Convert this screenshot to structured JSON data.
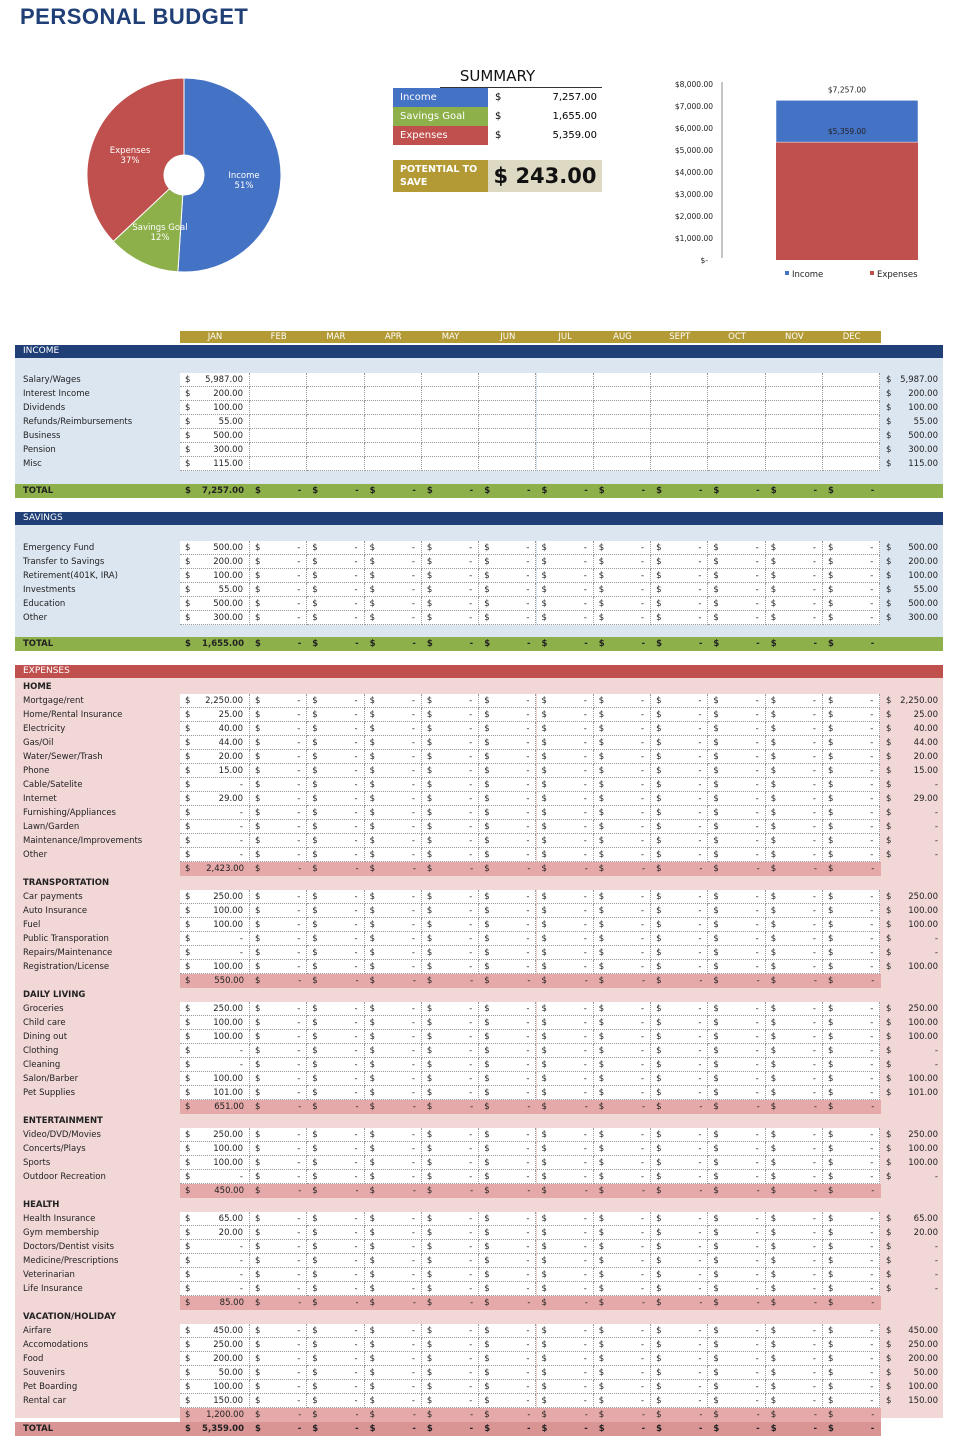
{
  "title": "PERSONAL BUDGET",
  "colors": {
    "navy": "#1f3f76",
    "blue": "#4472c4",
    "green": "#8db04a",
    "red": "#c0504d",
    "gold": "#b39a35",
    "beige": "#ddd9c3",
    "light_blue": "#dce6f1",
    "pink": "#f2d7d7",
    "pink_dark": "#d99594"
  },
  "summary": {
    "title": "SUMMARY",
    "rows": [
      {
        "label": "Income",
        "currency": "$",
        "value": "7,257.00",
        "color": "#4472c4"
      },
      {
        "label": "Savings Goal",
        "currency": "$",
        "value": "1,655.00",
        "color": "#8db04a"
      },
      {
        "label": "Expenses",
        "currency": "$",
        "value": "5,359.00",
        "color": "#c0504d"
      }
    ],
    "potential_label": "POTENTIAL TO SAVE",
    "potential_value": "$ 243.00"
  },
  "chart_data": [
    {
      "type": "pie",
      "slices": [
        {
          "label": "Income",
          "value": 51,
          "display": "51%",
          "color": "#4472c4"
        },
        {
          "label": "Savings Goal",
          "value": 12,
          "display": "12%",
          "color": "#8db04a"
        },
        {
          "label": "Expenses",
          "value": 37,
          "display": "37%",
          "color": "#c0504d"
        }
      ]
    },
    {
      "type": "bar",
      "stacked": true,
      "ylim": [
        0,
        8000
      ],
      "yticks": [
        "$-",
        "$1,000.00",
        "$2,000.00",
        "$3,000.00",
        "$4,000.00",
        "$5,000.00",
        "$6,000.00",
        "$7,000.00",
        "$8,000.00"
      ],
      "series": [
        {
          "name": "Expenses",
          "value": 5359,
          "label": "$5,359.00",
          "color": "#c0504d"
        },
        {
          "name": "Income",
          "value": 7257,
          "label": "$7,257.00",
          "color": "#4472c4"
        }
      ],
      "legend": [
        "Income",
        "Expenses"
      ],
      "legend_position": "bottom"
    }
  ],
  "months": [
    "JAN",
    "FEB",
    "MAR",
    "APR",
    "MAY",
    "JUN",
    "JUL",
    "AUG",
    "SEPT",
    "OCT",
    "NOV",
    "DEC"
  ],
  "income": {
    "title": "INCOME",
    "total_label": "TOTAL",
    "total": "7,257.00",
    "items": [
      {
        "label": "Salary/Wages",
        "jan": "5,987.00"
      },
      {
        "label": "Interest Income",
        "jan": "200.00"
      },
      {
        "label": "Dividends",
        "jan": "100.00"
      },
      {
        "label": "Refunds/Reimbursements",
        "jan": "55.00"
      },
      {
        "label": "Business",
        "jan": "500.00"
      },
      {
        "label": "Pension",
        "jan": "300.00"
      },
      {
        "label": "Misc",
        "jan": "115.00"
      }
    ]
  },
  "savings": {
    "title": "SAVINGS",
    "total_label": "TOTAL",
    "total": "1,655.00",
    "items": [
      {
        "label": "Emergency Fund",
        "jan": "500.00"
      },
      {
        "label": "Transfer to Savings",
        "jan": "200.00"
      },
      {
        "label": "Retirement(401K, IRA)",
        "jan": "100.00"
      },
      {
        "label": "Investments",
        "jan": "55.00"
      },
      {
        "label": "Education",
        "jan": "500.00"
      },
      {
        "label": "Other",
        "jan": "300.00"
      }
    ]
  },
  "expenses": {
    "title": "EXPENSES",
    "total_label": "TOTAL",
    "total": "5,359.00",
    "groups": [
      {
        "title": "HOME",
        "subtotal": "2,423.00",
        "items": [
          {
            "label": "Mortgage/rent",
            "jan": "2,250.00"
          },
          {
            "label": "Home/Rental Insurance",
            "jan": "25.00"
          },
          {
            "label": "Electricity",
            "jan": "40.00"
          },
          {
            "label": "Gas/Oil",
            "jan": "44.00"
          },
          {
            "label": "Water/Sewer/Trash",
            "jan": "20.00"
          },
          {
            "label": "Phone",
            "jan": "15.00"
          },
          {
            "label": "Cable/Satelite",
            "jan": "-"
          },
          {
            "label": "Internet",
            "jan": "29.00"
          },
          {
            "label": "Furnishing/Appliances",
            "jan": "-"
          },
          {
            "label": "Lawn/Garden",
            "jan": "-"
          },
          {
            "label": "Maintenance/Improvements",
            "jan": "-"
          },
          {
            "label": "Other",
            "jan": "-"
          }
        ]
      },
      {
        "title": "TRANSPORTATION",
        "subtotal": "550.00",
        "items": [
          {
            "label": "Car payments",
            "jan": "250.00"
          },
          {
            "label": "Auto Insurance",
            "jan": "100.00"
          },
          {
            "label": "Fuel",
            "jan": "100.00"
          },
          {
            "label": "Public Transporation",
            "jan": "-"
          },
          {
            "label": "Repairs/Maintenance",
            "jan": "-"
          },
          {
            "label": "Registration/License",
            "jan": "100.00"
          }
        ]
      },
      {
        "title": "DAILY LIVING",
        "subtotal": "651.00",
        "items": [
          {
            "label": "Groceries",
            "jan": "250.00"
          },
          {
            "label": "Child care",
            "jan": "100.00"
          },
          {
            "label": "Dining out",
            "jan": "100.00"
          },
          {
            "label": "Clothing",
            "jan": "-"
          },
          {
            "label": "Cleaning",
            "jan": "-"
          },
          {
            "label": "Salon/Barber",
            "jan": "100.00"
          },
          {
            "label": "Pet Supplies",
            "jan": "101.00"
          }
        ]
      },
      {
        "title": "ENTERTAINMENT",
        "subtotal": "450.00",
        "items": [
          {
            "label": "Video/DVD/Movies",
            "jan": "250.00"
          },
          {
            "label": "Concerts/Plays",
            "jan": "100.00"
          },
          {
            "label": "Sports",
            "jan": "100.00"
          },
          {
            "label": "Outdoor Recreation",
            "jan": "-"
          }
        ]
      },
      {
        "title": "HEALTH",
        "subtotal": "85.00",
        "items": [
          {
            "label": "Health Insurance",
            "jan": "65.00"
          },
          {
            "label": "Gym membership",
            "jan": "20.00"
          },
          {
            "label": "Doctors/Dentist visits",
            "jan": "-"
          },
          {
            "label": "Medicine/Prescriptions",
            "jan": "-"
          },
          {
            "label": "Veterinarian",
            "jan": "-"
          },
          {
            "label": "Life Insurance",
            "jan": "-"
          }
        ]
      },
      {
        "title": "VACATION/HOLIDAY",
        "subtotal": "1,200.00",
        "items": [
          {
            "label": "Airfare",
            "jan": "450.00"
          },
          {
            "label": "Accomodations",
            "jan": "250.00"
          },
          {
            "label": "Food",
            "jan": "200.00"
          },
          {
            "label": "Souvenirs",
            "jan": "50.00"
          },
          {
            "label": "Pet Boarding",
            "jan": "100.00"
          },
          {
            "label": "Rental car",
            "jan": "150.00"
          }
        ]
      }
    ]
  },
  "currency": "$",
  "empty": "-"
}
